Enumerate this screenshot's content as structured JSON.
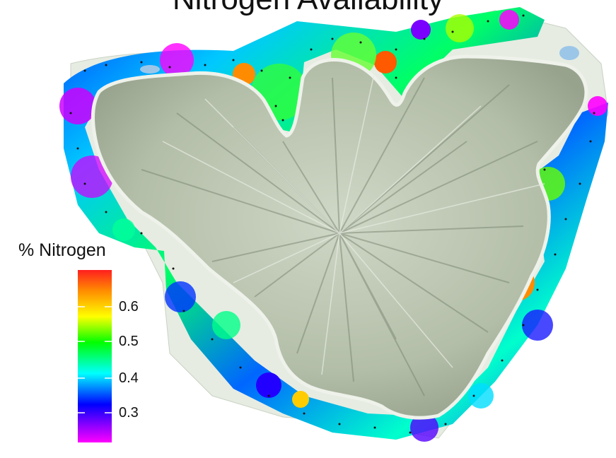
{
  "title": "Nitrogen Availability",
  "legend": {
    "title": "% Nitrogen",
    "ticks": [
      "0.6",
      "0.5",
      "0.4",
      "0.3"
    ],
    "color_stops": [
      "#ff1f1f",
      "#ff8c00",
      "#ffff00",
      "#00ff00",
      "#00ffff",
      "#0000ff",
      "#ff00ff"
    ]
  },
  "colors": {
    "terrain": "#b8c2ad",
    "terrain_shadow": "#7f8b77",
    "water": "#9cc6e8",
    "lowland": "#dfe5db"
  }
}
